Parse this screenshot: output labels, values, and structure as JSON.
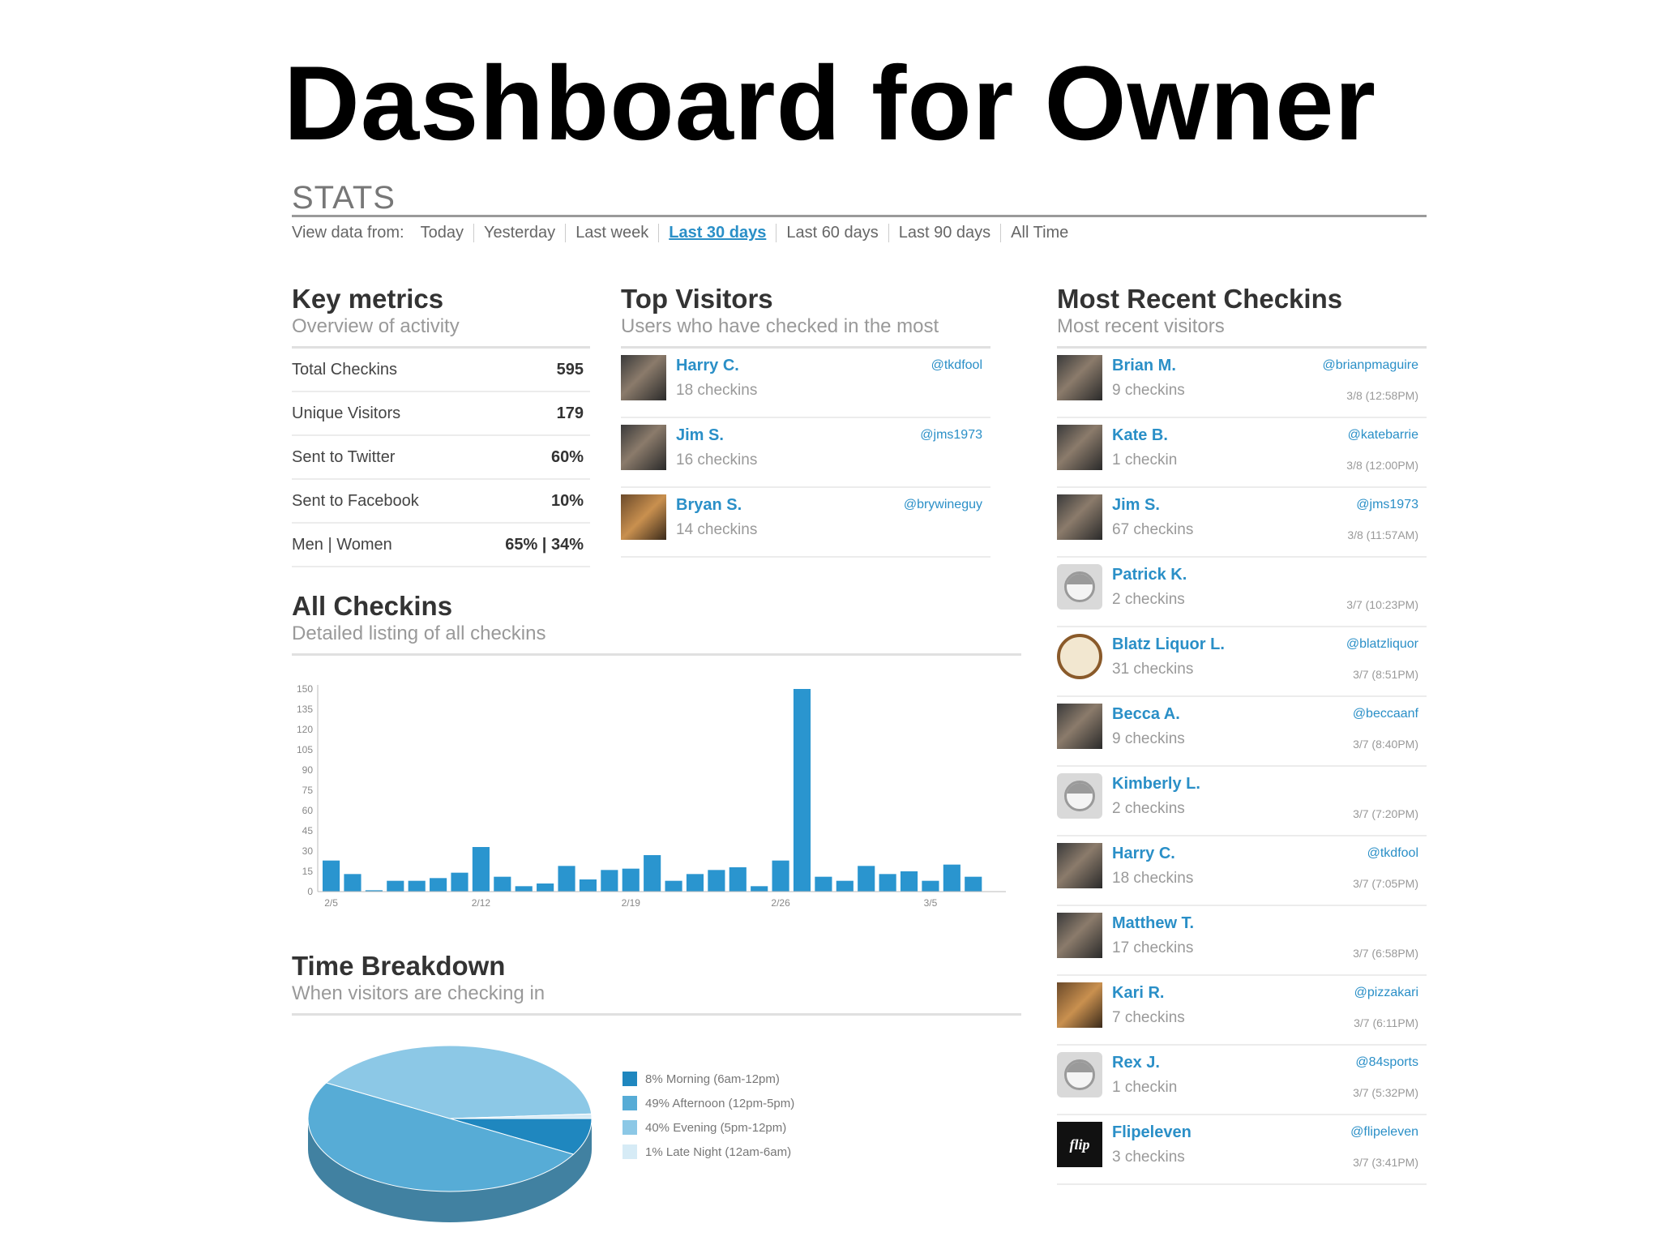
{
  "slide_title": "Dashboard for Owner",
  "stats": {
    "heading": "STATS",
    "range_label": "View data from:",
    "ranges": [
      "Today",
      "Yesterday",
      "Last week",
      "Last 30 days",
      "Last 60 days",
      "Last 90 days",
      "All Time"
    ],
    "active_range": "Last 30 days"
  },
  "key_metrics": {
    "title": "Key metrics",
    "subtitle": "Overview of activity",
    "rows": [
      {
        "label": "Total Checkins",
        "value": "595"
      },
      {
        "label": "Unique Visitors",
        "value": "179"
      },
      {
        "label": "Sent to Twitter",
        "value": "60%"
      },
      {
        "label": "Sent to Facebook",
        "value": "10%"
      },
      {
        "label": "Men | Women",
        "value": "65% | 34%"
      }
    ]
  },
  "top_visitors": {
    "title": "Top Visitors",
    "subtitle": "Users who have checked in the most",
    "rows": [
      {
        "name": "Harry C.",
        "count": "18 checkins",
        "handle": "@tkdfool",
        "avatar": "photo"
      },
      {
        "name": "Jim S.",
        "count": "16 checkins",
        "handle": "@jms1973",
        "avatar": "photo"
      },
      {
        "name": "Bryan S.",
        "count": "14 checkins",
        "handle": "@brywineguy",
        "avatar": "warm"
      }
    ]
  },
  "recent_checkins": {
    "title": "Most Recent Checkins",
    "subtitle": "Most recent visitors",
    "rows": [
      {
        "name": "Brian M.",
        "count": "9 checkins",
        "handle": "@brianpmaguire",
        "time": "3/8 (12:58PM)",
        "avatar": "photo"
      },
      {
        "name": "Kate B.",
        "count": "1 checkin",
        "handle": "@katebarrie",
        "time": "3/8 (12:00PM)",
        "avatar": "photo"
      },
      {
        "name": "Jim S.",
        "count": "67 checkins",
        "handle": "@jms1973",
        "time": "3/8 (11:57AM)",
        "avatar": "photo"
      },
      {
        "name": "Patrick K.",
        "count": "2 checkins",
        "handle": "",
        "time": "3/7 (10:23PM)",
        "avatar": "gray"
      },
      {
        "name": "Blatz Liquor L.",
        "count": "31 checkins",
        "handle": "@blatzliquor",
        "time": "3/7 (8:51PM)",
        "avatar": "logo"
      },
      {
        "name": "Becca A.",
        "count": "9 checkins",
        "handle": "@beccaanf",
        "time": "3/7 (8:40PM)",
        "avatar": "photo"
      },
      {
        "name": "Kimberly L.",
        "count": "2 checkins",
        "handle": "",
        "time": "3/7 (7:20PM)",
        "avatar": "gray"
      },
      {
        "name": "Harry C.",
        "count": "18 checkins",
        "handle": "@tkdfool",
        "time": "3/7 (7:05PM)",
        "avatar": "photo"
      },
      {
        "name": "Matthew T.",
        "count": "17 checkins",
        "handle": "",
        "time": "3/7 (6:58PM)",
        "avatar": "photo"
      },
      {
        "name": "Kari R.",
        "count": "7 checkins",
        "handle": "@pizzakari",
        "time": "3/7 (6:11PM)",
        "avatar": "warm"
      },
      {
        "name": "Rex J.",
        "count": "1 checkin",
        "handle": "@84sports",
        "time": "3/7 (5:32PM)",
        "avatar": "gray"
      },
      {
        "name": "Flipeleven",
        "count": "3 checkins",
        "handle": "@flipeleven",
        "time": "3/7 (3:41PM)",
        "avatar": "dark",
        "avatar_text": "flip"
      }
    ]
  },
  "all_checkins": {
    "title": "All Checkins",
    "subtitle": "Detailed listing of all checkins"
  },
  "time_breakdown": {
    "title": "Time Breakdown",
    "subtitle": "When visitors are checking in"
  },
  "colors": {
    "accent": "#2a8fc7",
    "bar": "#2a95cf"
  },
  "chart_data": [
    {
      "type": "bar",
      "categories": [
        "2/5",
        "2/6",
        "2/7",
        "2/8",
        "2/9",
        "2/10",
        "2/11",
        "2/12",
        "2/13",
        "2/14",
        "2/15",
        "2/16",
        "2/17",
        "2/18",
        "2/19",
        "2/20",
        "2/21",
        "2/22",
        "2/23",
        "2/24",
        "2/25",
        "2/26",
        "2/27",
        "2/28",
        "3/1",
        "3/2",
        "3/3",
        "3/4",
        "3/5",
        "3/6",
        "3/7",
        "3/8"
      ],
      "tick_labels": [
        "2/5",
        "2/12",
        "2/19",
        "2/26",
        "3/5"
      ],
      "values": [
        23,
        13,
        1,
        8,
        8,
        10,
        14,
        33,
        11,
        4,
        6,
        19,
        9,
        16,
        17,
        27,
        8,
        13,
        16,
        18,
        4,
        23,
        150,
        11,
        8,
        19,
        13,
        15,
        8,
        20,
        11,
        0
      ],
      "ylim": [
        0,
        150
      ],
      "yticks": [
        0,
        15,
        30,
        45,
        60,
        75,
        90,
        105,
        120,
        135,
        150
      ],
      "grid": false
    },
    {
      "type": "pie",
      "labels": [
        "8% Morning (6am-12pm)",
        "49% Afternoon (12pm-5pm)",
        "40% Evening (5pm-12pm)",
        "1% Late Night (12am-6am)"
      ],
      "values": [
        8,
        49,
        40,
        1
      ],
      "colors": [
        "#1f87bf",
        "#57acd6",
        "#8cc8e6",
        "#d6ebf6"
      ],
      "legend": "right"
    }
  ]
}
